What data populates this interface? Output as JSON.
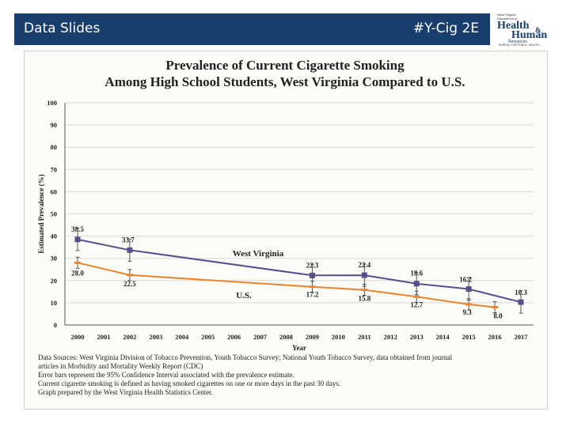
{
  "header": {
    "left_label": "Data Slides",
    "right_label": "#Y-Cig 2E"
  },
  "logo": {
    "line1": "West Virginia",
    "line2": "Department of",
    "word1": "Health",
    "amp": "&",
    "word2": "Human",
    "word3": "Resources",
    "tagline": "BUREAU FOR PUBLIC HEALTH"
  },
  "chart_data": {
    "type": "line",
    "title": "Prevalence of Current Cigarette Smoking",
    "subtitle": "Among High School Students, West Virginia Compared to U.S.",
    "xlabel": "Year",
    "ylabel": "Estimated Prevalence (%)",
    "ylim": [
      0,
      100
    ],
    "yticks": [
      0,
      10,
      20,
      30,
      40,
      50,
      60,
      70,
      80,
      90,
      100
    ],
    "x": [
      "2000",
      "2001",
      "2002",
      "2003",
      "2004",
      "2005",
      "2006",
      "2007",
      "2008",
      "2009",
      "2010",
      "2011",
      "2012",
      "2013",
      "2014",
      "2015",
      "2016",
      "2017"
    ],
    "grid": true,
    "series": [
      {
        "name": "West Virginia",
        "color": "#5a4f8c",
        "marker": "square",
        "points": [
          {
            "x": "2000",
            "y": 38.5,
            "label": "38.5"
          },
          {
            "x": "2002",
            "y": 33.7,
            "label": "33.7"
          },
          {
            "x": "2009",
            "y": 22.3,
            "label": "22.3"
          },
          {
            "x": "2011",
            "y": 22.4,
            "label": "22.4"
          },
          {
            "x": "2013",
            "y": 18.6,
            "label": "18.6"
          },
          {
            "x": "2015",
            "y": 16.2,
            "label": "16.2"
          },
          {
            "x": "2017",
            "y": 10.3,
            "label": "10.3"
          }
        ]
      },
      {
        "name": "U.S.",
        "color": "#e8852e",
        "marker": "dash",
        "points": [
          {
            "x": "2000",
            "y": 28.0,
            "label": "28.0"
          },
          {
            "x": "2002",
            "y": 22.5,
            "label": "22.5"
          },
          {
            "x": "2009",
            "y": 17.2,
            "label": "17.2"
          },
          {
            "x": "2011",
            "y": 15.8,
            "label": "15.8"
          },
          {
            "x": "2013",
            "y": 12.7,
            "label": "12.7"
          },
          {
            "x": "2015",
            "y": 9.3,
            "label": "9.3"
          },
          {
            "x": "2016",
            "y": 8.0,
            "label": "8.0"
          }
        ]
      }
    ],
    "notes": [
      "Data Sources: West Virginia Division of Tobacco Prevention, Youth Tobacco Survey; National Youth Tobacco Survey, data obtained from journal",
      "articles in Morbidity and Mortality Weekly Report (CDC)",
      "Error bars represent the 95% Confidence Interval associated with the prevalence estimate.",
      "Current cigarette smoking is defined as having smoked cigarettes on one or more days in the past 30 days.",
      "Graph prepared by the West Virginia Health Statistics Center."
    ]
  }
}
